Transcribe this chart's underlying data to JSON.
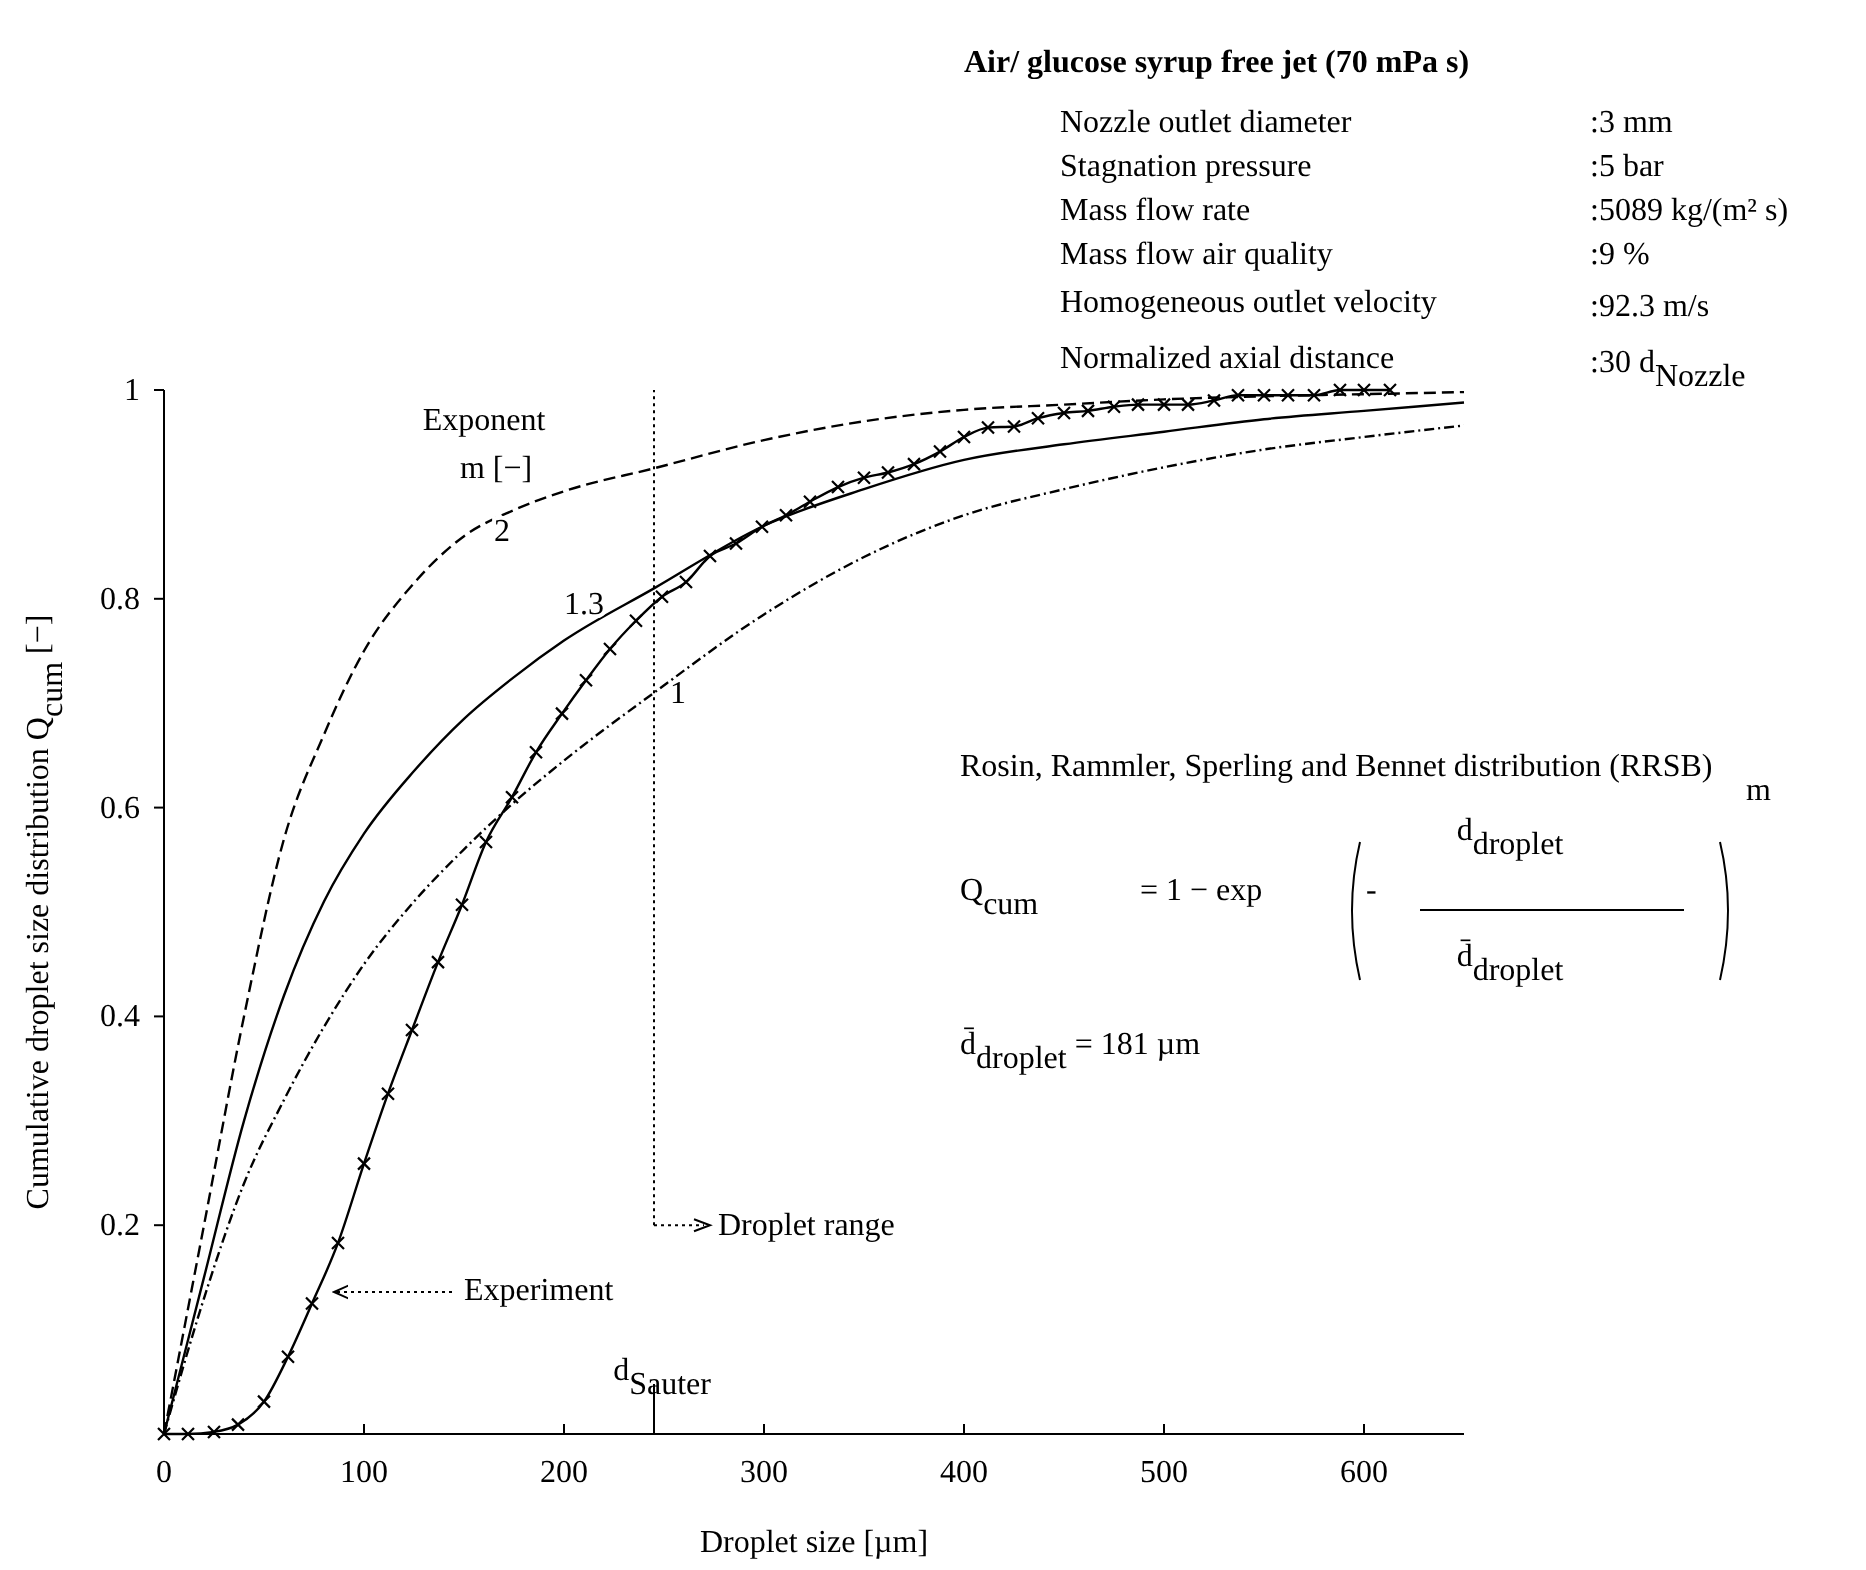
{
  "chart_data": {
    "type": "line",
    "title": "Air/ glucose syrup free jet (70 mPa s)",
    "xlabel": "Droplet size [µm]",
    "ylabel": "Cumulative  droplet size distribution  Q$_{cum}$ [−]",
    "legend_title": "Exponent m [−]",
    "xlim": [
      0,
      650
    ],
    "xticks": [
      0,
      100,
      200,
      300,
      400,
      500,
      600
    ],
    "ylim": [
      0,
      1
    ],
    "yticks": [
      0.2,
      0.4,
      0.6,
      0.8,
      1
    ],
    "grid": false,
    "series": [
      {
        "name": "2",
        "color": "#000000",
        "line_style": "dashed",
        "marker": "none",
        "x": [
          0,
          20,
          40,
          60,
          80,
          100,
          125,
          150,
          175,
          200,
          245,
          300,
          350,
          400,
          450,
          500,
          550,
          600,
          650
        ],
        "values": [
          0,
          0.2,
          0.4,
          0.57,
          0.67,
          0.75,
          0.815,
          0.86,
          0.885,
          0.903,
          0.925,
          0.952,
          0.97,
          0.981,
          0.986,
          0.991,
          0.994,
          0.996,
          0.998
        ]
      },
      {
        "name": "1.3",
        "color": "#000000",
        "line_style": "solid",
        "marker": "none",
        "x": [
          0,
          20,
          40,
          60,
          80,
          100,
          125,
          150,
          175,
          200,
          245,
          300,
          350,
          400,
          450,
          500,
          550,
          600,
          650
        ],
        "values": [
          0,
          0.15,
          0.3,
          0.42,
          0.51,
          0.575,
          0.635,
          0.685,
          0.725,
          0.76,
          0.81,
          0.87,
          0.905,
          0.933,
          0.948,
          0.96,
          0.972,
          0.98,
          0.988
        ]
      },
      {
        "name": "1",
        "color": "#000000",
        "line_style": "dotted",
        "marker": "none",
        "x": [
          0,
          20,
          40,
          60,
          80,
          100,
          125,
          150,
          175,
          200,
          245,
          300,
          350,
          400,
          450,
          500,
          550,
          600,
          650
        ],
        "values": [
          0,
          0.13,
          0.24,
          0.32,
          0.39,
          0.45,
          0.51,
          0.56,
          0.605,
          0.645,
          0.71,
          0.785,
          0.84,
          0.88,
          0.905,
          0.926,
          0.943,
          0.955,
          0.966
        ]
      },
      {
        "color": "#000000",
        "line_style": "solid",
        "marker": "cross",
        "x": [
          0,
          12,
          25,
          37,
          50,
          62,
          74,
          87,
          100,
          112,
          124,
          137,
          149,
          161,
          174,
          186,
          199,
          211,
          223,
          236,
          249,
          261,
          273,
          286,
          299,
          311,
          323,
          337,
          350,
          362,
          375,
          388,
          400,
          412,
          425,
          437,
          450,
          462,
          475,
          487,
          500,
          512,
          525,
          537,
          550,
          562,
          575,
          588,
          600,
          613
        ],
        "values": [
          0,
          0,
          0.002,
          0.009,
          0.031,
          0.074,
          0.125,
          0.183,
          0.259,
          0.326,
          0.387,
          0.452,
          0.507,
          0.567,
          0.61,
          0.653,
          0.69,
          0.722,
          0.752,
          0.779,
          0.802,
          0.816,
          0.841,
          0.853,
          0.869,
          0.88,
          0.893,
          0.907,
          0.916,
          0.921,
          0.929,
          0.941,
          0.955,
          0.964,
          0.965,
          0.973,
          0.978,
          0.98,
          0.984,
          0.986,
          0.986,
          0.986,
          0.99,
          0.995,
          0.995,
          0.995,
          0.995,
          1,
          1,
          1
        ]
      }
    ],
    "ref_lines": [
      {
        "axis": "x",
        "value": 245,
        "label": "d$_{Sauter}$",
        "line_style": "dotted"
      }
    ],
    "annotations": [
      "Nozzle outlet diameter",
      "Stagnation pressure",
      "Mass flow rate",
      "Mass flow air quality",
      "Homogeneous outlet velocity",
      "Normalized axial distance",
      ":3 mm",
      ":5 bar",
      ":5089 kg/(m² s)",
      ":9 %",
      ":92.3 m/s",
      ":30 d$_{Nozzle}$",
      "Rosin, Rammler, Sperling and Bennet distribution (RRSB)",
      "Q$_{cum}$",
      "= 1  −  exp",
      "-",
      "d$_{droplet}$",
      "d̄$_{droplet}$",
      "m",
      "d̄$_{droplet}$  = 181 µm",
      "Experiment",
      {
        "text": "Droplet range",
        "x": 245,
        "y": 0.2
      }
    ]
  }
}
